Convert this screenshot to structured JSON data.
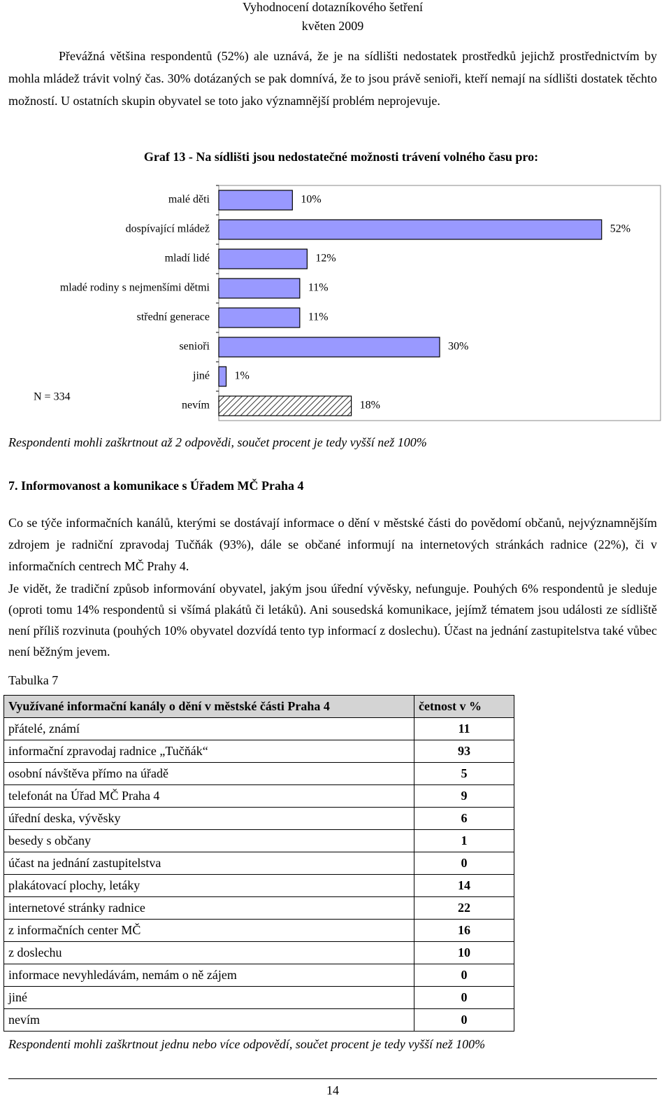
{
  "header": {
    "title": "Vyhodnocení dotazníkového šetření",
    "date": "květen 2009"
  },
  "intro": "Převážná většina respondentů (52%) ale uznává, že je na sídlišti nedostatek prostředků jejichž prostřednictvím by mohla mládež trávit volný čas. 30% dotázaných se pak domnívá, že to jsou právě senioři, kteří nemají na sídlišti dostatek těchto možností. U ostatních skupin obyvatel se toto jako významnější problém neprojevuje.",
  "chart_data": {
    "type": "bar",
    "orientation": "horizontal",
    "title": "Graf 13 - Na sídlišti jsou nedostatečné možnosti trávení volného času pro:",
    "categories": [
      "malé děti",
      "dospívající mládež",
      "mladí lidé",
      "mladé rodiny s nejmenšími dětmi",
      "střední generace",
      "senioři",
      "jiné",
      "nevím"
    ],
    "values": [
      10,
      52,
      12,
      11,
      11,
      30,
      1,
      18
    ],
    "value_labels": [
      "10%",
      "52%",
      "12%",
      "11%",
      "11%",
      "30%",
      "1%",
      "18%"
    ],
    "color": "#9999ff",
    "hatch": [
      false,
      false,
      false,
      false,
      false,
      false,
      false,
      true
    ],
    "xlim": [
      0,
      60
    ],
    "n_label": "N = 334",
    "note": "Respondenti mohli zaškrtnout až 2 odpovědi, součet procent je tedy vyšší než 100%"
  },
  "section": {
    "heading": "7. Informovanost a komunikace s Úřadem MČ Praha 4",
    "paragraphs": [
      "Co se týče informačních kanálů, kterými se dostávají informace o dění v městské části do povědomí občanů, nejvýznamnějším zdrojem je radniční zpravodaj Tučňák (93%), dále se občané informují na internetových stránkách radnice (22%), či v informačních centrech MČ Prahy 4.",
      "Je vidět, že tradiční způsob informování obyvatel, jakým jsou úřední vývěsky, nefunguje. Pouhých 6% respondentů je sleduje (oproti tomu 14% respondentů si všímá plakátů či letáků). Ani sousedská komunikace, jejímž tématem jsou události ze sídliště není příliš rozvinuta (pouhých 10% obyvatel dozvídá tento typ informací z doslechu). Účast na jednání zastupitelstva také vůbec není běžným jevem."
    ]
  },
  "table": {
    "caption": "Tabulka 7",
    "header": [
      "Využívané informační kanály o dění v městské části Praha 4",
      "četnost v %"
    ],
    "rows": [
      [
        "přátelé, známí",
        11
      ],
      [
        "informační zpravodaj radnice „Tučňák“",
        93
      ],
      [
        "osobní návštěva přímo na úřadě",
        5
      ],
      [
        "telefonát na Úřad MČ Praha 4",
        9
      ],
      [
        "úřední deska, vývěsky",
        6
      ],
      [
        "besedy s občany",
        1
      ],
      [
        "účast na jednání zastupitelstva",
        0
      ],
      [
        "plakátovací plochy, letáky",
        14
      ],
      [
        "internetové stránky radnice",
        22
      ],
      [
        "z informačních center MČ",
        16
      ],
      [
        "z doslechu",
        10
      ],
      [
        "informace nevyhledávám, nemám o ně zájem",
        0
      ],
      [
        "jiné",
        0
      ],
      [
        "nevím",
        0
      ]
    ],
    "note": "Respondenti mohli zaškrtnout jednu nebo více odpovědí, součet procent je tedy vyšší než 100%"
  },
  "footer": {
    "page": "14"
  }
}
